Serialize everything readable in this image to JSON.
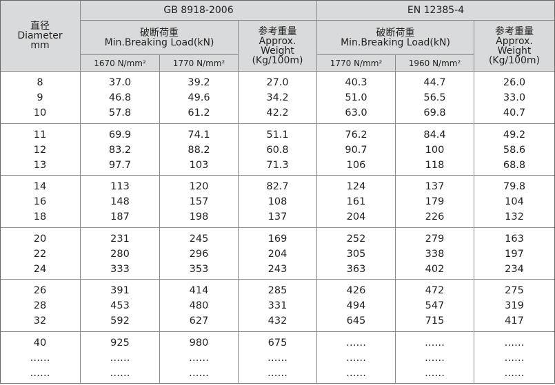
{
  "header": {
    "diameter": [
      "直径",
      "Diameter",
      "mm"
    ],
    "gb": {
      "standard": "GB 8918-2006",
      "load": [
        "破断荷重",
        "Min.Breaking Load(kN)"
      ],
      "weight": [
        "参考重量",
        "Approx.",
        "Weight",
        "(Kg/100m)"
      ],
      "grades": [
        "1670 N/mm²",
        "1770 N/mm²"
      ]
    },
    "en": {
      "standard": "EN 12385-4",
      "load": [
        "破断荷重",
        "Min.Breaking Load(kN)"
      ],
      "weight": [
        "参考重量",
        "Approx.",
        "Weight",
        "(Kg/100m)"
      ],
      "grades": [
        "1770 N/mm²",
        "1960 N/mm²"
      ]
    }
  },
  "body": {
    "groups": [
      [
        [
          "8",
          "37.0",
          "39.2",
          "27.0",
          "40.3",
          "44.7",
          "26.0"
        ],
        [
          "9",
          "46.8",
          "49.6",
          "34.2",
          "51.0",
          "56.5",
          "33.0"
        ],
        [
          "10",
          "57.8",
          "61.2",
          "42.2",
          "63.0",
          "69.8",
          "40.7"
        ]
      ],
      [
        [
          "11",
          "69.9",
          "74.1",
          "51.1",
          "76.2",
          "84.4",
          "49.2"
        ],
        [
          "12",
          "83.2",
          "88.2",
          "60.8",
          "90.7",
          "100",
          "58.6"
        ],
        [
          "13",
          "97.7",
          "103",
          "71.3",
          "106",
          "118",
          "68.8"
        ]
      ],
      [
        [
          "14",
          "113",
          "120",
          "82.7",
          "124",
          "137",
          "79.8"
        ],
        [
          "16",
          "148",
          "157",
          "108",
          "161",
          "179",
          "104"
        ],
        [
          "18",
          "187",
          "198",
          "137",
          "204",
          "226",
          "132"
        ]
      ],
      [
        [
          "20",
          "231",
          "245",
          "169",
          "252",
          "279",
          "163"
        ],
        [
          "22",
          "280",
          "296",
          "204",
          "305",
          "338",
          "197"
        ],
        [
          "24",
          "333",
          "353",
          "243",
          "363",
          "402",
          "234"
        ]
      ],
      [
        [
          "26",
          "391",
          "414",
          "285",
          "426",
          "472",
          "275"
        ],
        [
          "28",
          "453",
          "480",
          "331",
          "494",
          "547",
          "319"
        ],
        [
          "32",
          "592",
          "627",
          "432",
          "645",
          "715",
          "417"
        ]
      ],
      [
        [
          "40",
          "925",
          "980",
          "675",
          "……",
          "……",
          "……"
        ],
        [
          "……",
          "……",
          "……",
          "……",
          "……",
          "……",
          "……"
        ],
        [
          "……",
          "……",
          "……",
          "……",
          "……",
          "……",
          "……"
        ]
      ]
    ]
  }
}
